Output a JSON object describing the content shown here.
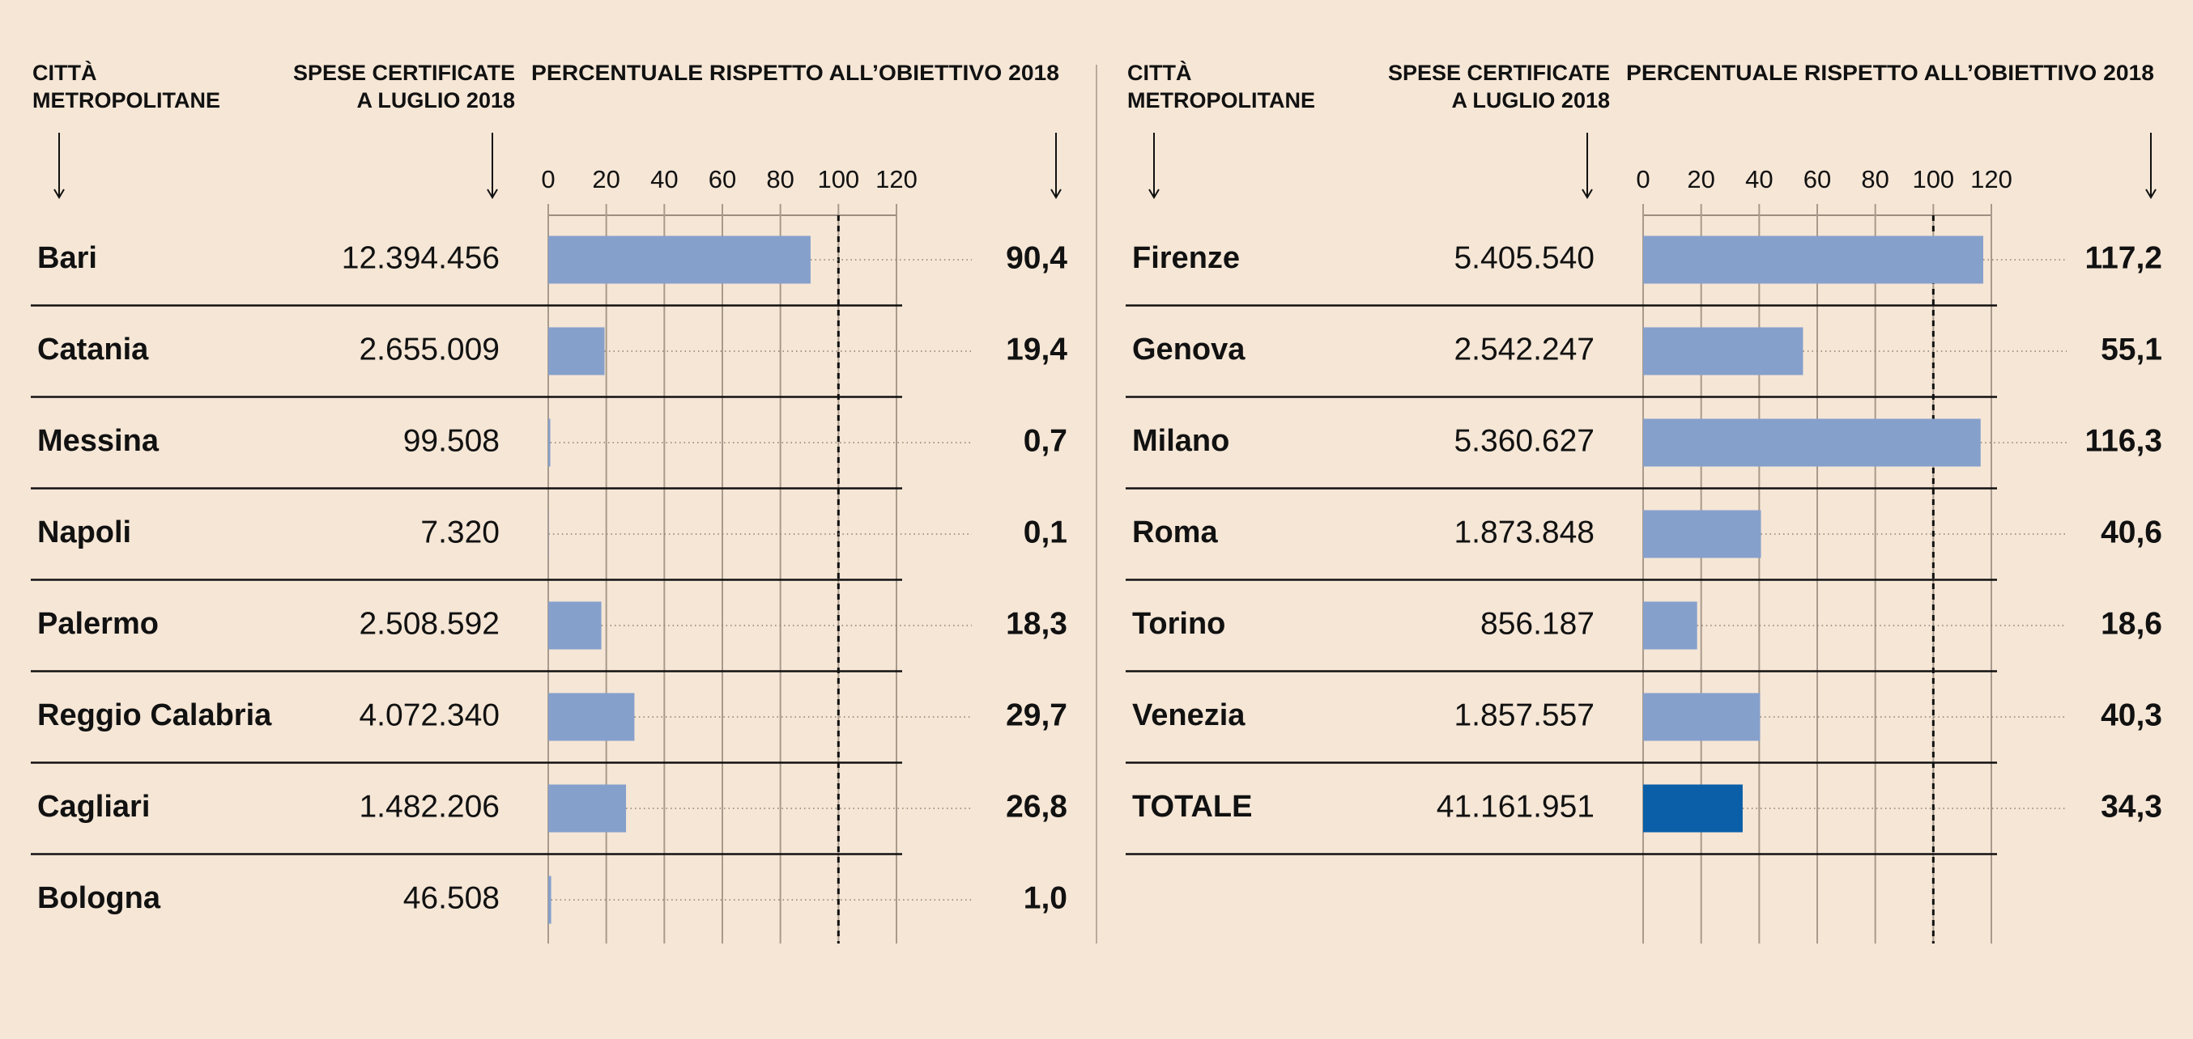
{
  "chart_data": [
    {
      "type": "bar",
      "orientation": "horizontal",
      "headers": {
        "category": [
          "CITTÀ",
          "METROPOLITANE"
        ],
        "amount": [
          "SPESE CERTIFICATE",
          "A LUGLIO 2018"
        ],
        "value": [
          "PERCENTUALE RISPETTO ALL’OBIETTIVO 2018"
        ]
      },
      "categories": [
        "Bari",
        "Catania",
        "Messina",
        "Napoli",
        "Palermo",
        "Reggio Calabria",
        "Cagliari",
        "Bologna"
      ],
      "amounts": [
        "12.394.456",
        "2.655.009",
        "99.508",
        "7.320",
        "2.508.592",
        "4.072.340",
        "1.482.206",
        "46.508"
      ],
      "values": [
        90.4,
        19.4,
        0.7,
        0.1,
        18.3,
        29.7,
        26.8,
        1.0
      ],
      "value_labels": [
        "90,4",
        "19,4",
        "0,7",
        "0,1",
        "18,3",
        "29,7",
        "26,8",
        "1,0"
      ],
      "colors": [
        "#86a0cc",
        "#86a0cc",
        "#86a0cc",
        "#86a0cc",
        "#86a0cc",
        "#86a0cc",
        "#86a0cc",
        "#86a0cc"
      ],
      "xlim": [
        0,
        120
      ],
      "xticks": [
        0,
        20,
        40,
        60,
        80,
        100,
        120
      ],
      "target": 100,
      "grid": true
    },
    {
      "type": "bar",
      "orientation": "horizontal",
      "headers": {
        "category": [
          "CITTÀ",
          "METROPOLITANE"
        ],
        "amount": [
          "SPESE CERTIFICATE",
          "A LUGLIO 2018"
        ],
        "value": [
          "PERCENTUALE RISPETTO ALL’OBIETTIVO 2018"
        ]
      },
      "categories": [
        "Firenze",
        "Genova",
        "Milano",
        "Roma",
        "Torino",
        "Venezia",
        "TOTALE"
      ],
      "amounts": [
        "5.405.540",
        "2.542.247",
        "5.360.627",
        "1.873.848",
        "856.187",
        "1.857.557",
        "41.161.951"
      ],
      "values": [
        117.2,
        55.1,
        116.3,
        40.6,
        18.6,
        40.3,
        34.3
      ],
      "value_labels": [
        "117,2",
        "55,1",
        "116,3",
        "40,6",
        "18,6",
        "40,3",
        "34,3"
      ],
      "colors": [
        "#86a0cc",
        "#86a0cc",
        "#86a0cc",
        "#86a0cc",
        "#86a0cc",
        "#86a0cc",
        "#0a5fa8"
      ],
      "xlim": [
        0,
        120
      ],
      "xticks": [
        0,
        20,
        40,
        60,
        80,
        100,
        120
      ],
      "target": 100,
      "grid": true
    }
  ]
}
